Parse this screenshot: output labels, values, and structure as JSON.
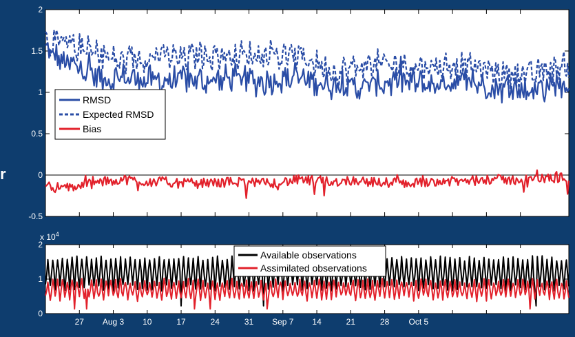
{
  "side_text": "r",
  "colors": {
    "background": "#0e3d6e",
    "rmsd": "#2a4da6",
    "bias": "#e2212b",
    "available": "#000000",
    "assimilated": "#e2212b"
  },
  "chart_data": [
    {
      "type": "line",
      "panel": "top",
      "ylim": [
        -0.5,
        2
      ],
      "yticks": [
        -0.5,
        0,
        0.5,
        1,
        1.5,
        2
      ],
      "ytick_labels": [
        "-0.5",
        "0",
        "0.5",
        "1",
        "1.5",
        "2"
      ],
      "xlim": [
        0,
        108
      ],
      "xticks": [
        7,
        14,
        21,
        28,
        35,
        42,
        49,
        56,
        63,
        70,
        77,
        84,
        91,
        98
      ],
      "grid": false,
      "legend_position": "left",
      "zero_line": true,
      "series": [
        {
          "name": "RMSD",
          "style": "solid",
          "color": "#2a4da6",
          "anchors": [
            [
              0,
              1.52
            ],
            [
              4,
              1.35
            ],
            [
              8,
              1.28
            ],
            [
              12,
              1.15
            ],
            [
              16,
              1.18
            ],
            [
              20,
              1.16
            ],
            [
              24,
              1.13
            ],
            [
              28,
              1.16
            ],
            [
              32,
              1.14
            ],
            [
              36,
              1.15
            ],
            [
              40,
              1.18
            ],
            [
              44,
              1.12
            ],
            [
              48,
              1.16
            ],
            [
              52,
              1.17
            ],
            [
              56,
              1.12
            ],
            [
              60,
              1.08
            ],
            [
              64,
              1.06
            ],
            [
              68,
              1.1
            ],
            [
              72,
              1.12
            ],
            [
              76,
              1.12
            ],
            [
              80,
              1.08
            ],
            [
              84,
              1.13
            ],
            [
              88,
              1.12
            ],
            [
              92,
              1.06
            ],
            [
              96,
              1.04
            ],
            [
              100,
              1.02
            ],
            [
              104,
              1.08
            ],
            [
              108,
              1.1
            ]
          ]
        },
        {
          "name": "Expected RMSD",
          "style": "dashed",
          "color": "#2a4da6",
          "anchors": [
            [
              0,
              1.62
            ],
            [
              4,
              1.58
            ],
            [
              8,
              1.52
            ],
            [
              12,
              1.44
            ],
            [
              16,
              1.36
            ],
            [
              20,
              1.42
            ],
            [
              24,
              1.45
            ],
            [
              28,
              1.4
            ],
            [
              32,
              1.46
            ],
            [
              36,
              1.44
            ],
            [
              40,
              1.45
            ],
            [
              44,
              1.44
            ],
            [
              48,
              1.43
            ],
            [
              52,
              1.44
            ],
            [
              56,
              1.35
            ],
            [
              60,
              1.24
            ],
            [
              64,
              1.3
            ],
            [
              68,
              1.34
            ],
            [
              72,
              1.32
            ],
            [
              76,
              1.32
            ],
            [
              80,
              1.3
            ],
            [
              84,
              1.33
            ],
            [
              88,
              1.31
            ],
            [
              92,
              1.25
            ],
            [
              96,
              1.22
            ],
            [
              100,
              1.2
            ],
            [
              104,
              1.28
            ],
            [
              108,
              1.32
            ]
          ]
        },
        {
          "name": "Bias",
          "style": "solid",
          "color": "#e2212b",
          "anchors": [
            [
              0,
              -0.12
            ],
            [
              4,
              -0.16
            ],
            [
              8,
              -0.12
            ],
            [
              12,
              -0.08
            ],
            [
              16,
              -0.05
            ],
            [
              20,
              -0.08
            ],
            [
              24,
              -0.08
            ],
            [
              28,
              -0.1
            ],
            [
              32,
              -0.1
            ],
            [
              36,
              -0.09
            ],
            [
              40,
              -0.08
            ],
            [
              44,
              -0.1
            ],
            [
              48,
              -0.09
            ],
            [
              52,
              -0.06
            ],
            [
              56,
              -0.07
            ],
            [
              60,
              -0.08
            ],
            [
              64,
              -0.06
            ],
            [
              68,
              -0.09
            ],
            [
              72,
              -0.09
            ],
            [
              76,
              -0.1
            ],
            [
              80,
              -0.07
            ],
            [
              84,
              -0.08
            ],
            [
              88,
              -0.07
            ],
            [
              92,
              -0.05
            ],
            [
              96,
              -0.06
            ],
            [
              100,
              -0.05
            ],
            [
              104,
              -0.04
            ],
            [
              108,
              -0.02
            ]
          ]
        }
      ]
    },
    {
      "type": "line",
      "panel": "bottom",
      "y_exponent": "x 10",
      "y_exponent_power": "4",
      "ylim": [
        0,
        2
      ],
      "yticks": [
        0,
        1,
        2
      ],
      "ytick_labels": [
        "0",
        "1",
        "2"
      ],
      "xlim": [
        0,
        108
      ],
      "xticks": [
        7,
        14,
        21,
        28,
        35,
        42,
        49,
        56,
        63,
        70,
        77,
        84,
        91,
        98
      ],
      "xtick_labels": [
        "27",
        "Aug 3",
        "10",
        "17",
        "24",
        "31",
        "Sep 7",
        "14",
        "21",
        "28",
        "Oct 5"
      ],
      "xtick_label_positions": [
        7,
        14,
        21,
        28,
        35,
        42,
        49,
        56,
        63,
        70,
        77
      ],
      "grid": false,
      "legend_position": "top-right",
      "series": [
        {
          "name": "Available observations",
          "color": "#000000",
          "low": 0.75,
          "high": 1.6,
          "period": 1
        },
        {
          "name": "Assimilated observations",
          "color": "#e2212b",
          "low": 0.45,
          "high": 0.95,
          "period": 1
        }
      ]
    }
  ]
}
